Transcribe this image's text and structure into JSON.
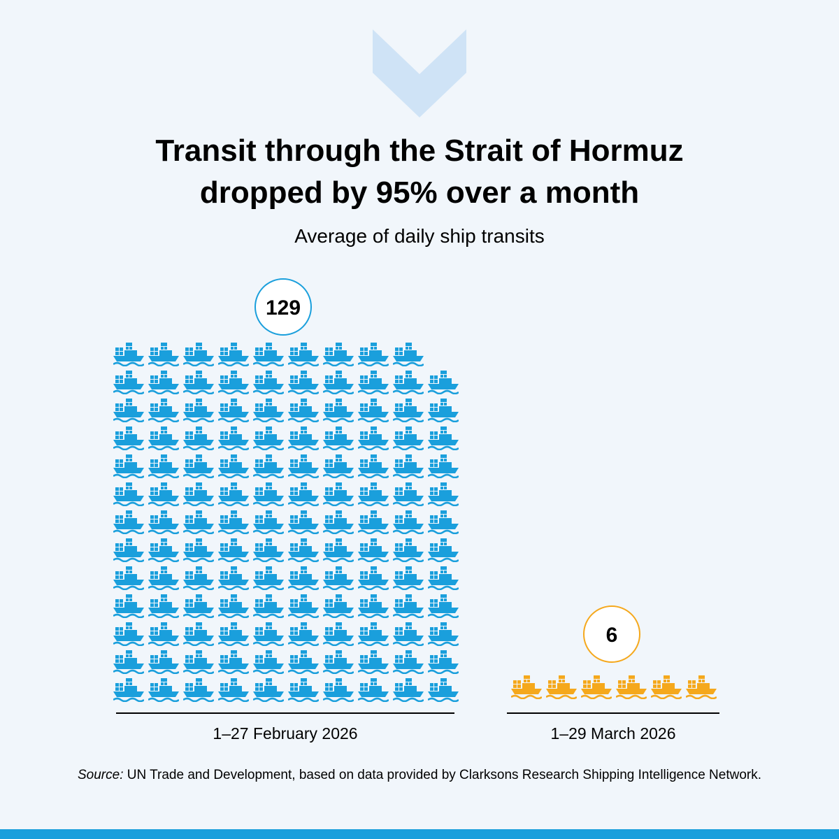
{
  "title_line1": "Transit through the Strait of Hormuz",
  "title_line2": "dropped by 95% over a month",
  "subtitle": "Average of daily ship transits",
  "chart_data": {
    "type": "pictogram",
    "title": "Transit through the Strait of Hormuz dropped by 95% over a month",
    "subtitle": "Average of daily ship transits",
    "categories": [
      "1–27 February 2026",
      "1–29 March 2026"
    ],
    "values": [
      129,
      6
    ],
    "value_labels": [
      "129",
      "6"
    ],
    "colors": [
      "#1a9fdc",
      "#f5a81c"
    ],
    "icon": "container-ship-icon"
  },
  "source_prefix": "Source:",
  "source_text": " UN Trade and Development, based on data provided by Clarksons Research Shipping Intelligence Network.",
  "colors": {
    "background": "#f1f6fb",
    "chevron": "#cfe3f6",
    "february": "#1a9fdc",
    "march": "#f5a81c",
    "bottom_bar": "#1a9fdc"
  }
}
